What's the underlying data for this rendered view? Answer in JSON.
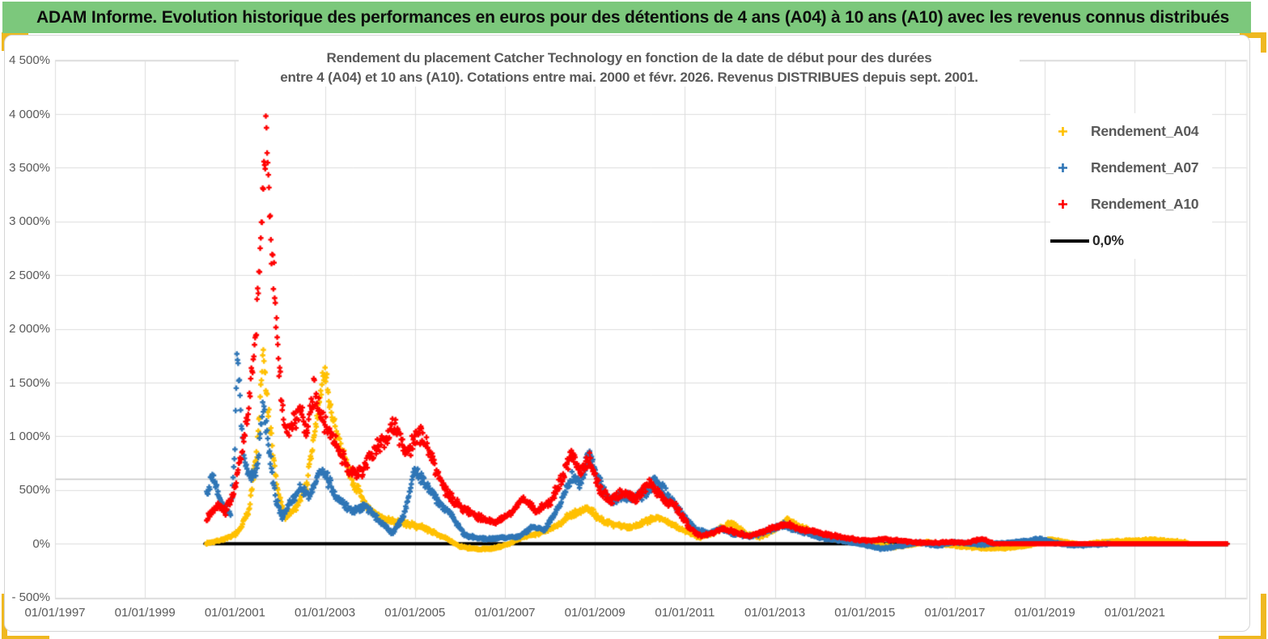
{
  "header": {
    "title": "ADAM Informe. Evolution historique des performances en euros pour des détentions de 4 ans (A04) à 10 ans (A10) avec les revenus connus distribués"
  },
  "colors": {
    "header_green": "#7CC87C",
    "gold_border": "#EFB820",
    "grid": "#DCDCDC",
    "grid_extra": "#C6C6C6",
    "axis_text": "#595959",
    "series_a04": "#FFC000",
    "series_a07": "#2E75B6",
    "series_a10": "#FF0000",
    "zero_line": "#000000"
  },
  "chart_data": {
    "type": "scatter",
    "units": "percent",
    "title_line1": "Rendement du placement Catcher Technology  en fonction de la date de début pour des durées",
    "title_line2": "entre 4 (A04) et 10 ans (A10). Cotations entre mai. 2000 et févr. 2026. Revenus DISTRIBUES depuis sept. 2001.",
    "grid": "on",
    "legend_position": "right",
    "x_axis": {
      "tick_labels": [
        "01/01/1997",
        "01/01/1999",
        "01/01/2001",
        "01/01/2003",
        "01/01/2005",
        "01/01/2007",
        "01/01/2009",
        "01/01/2011",
        "01/01/2013",
        "01/01/2015",
        "01/01/2017",
        "01/01/2019",
        "01/01/2021"
      ],
      "tick_years": [
        1997,
        1999,
        2001,
        2003,
        2005,
        2007,
        2009,
        2011,
        2013,
        2015,
        2017,
        2019,
        2021
      ],
      "gridline_years": [
        1997,
        1999,
        2001,
        2003,
        2005,
        2007,
        2009,
        2011,
        2013,
        2015,
        2017,
        2019,
        2021,
        2023
      ],
      "min_year": 1997,
      "max_year": 2023.45
    },
    "y_axis": {
      "tick_labels": [
        "4 500%",
        "4 000%",
        "3 500%",
        "3 000%",
        "2 500%",
        "2 000%",
        "1 500%",
        "1 000%",
        "500%",
        "0%",
        "- 500%"
      ],
      "tick_values": [
        4500,
        4000,
        3500,
        3000,
        2500,
        2000,
        1500,
        1000,
        500,
        0,
        -500
      ],
      "min": -500,
      "max": 4500,
      "extra_gridline_value": 600
    },
    "zero_line": {
      "label": "0,0%",
      "value": 0,
      "color": "#000000",
      "from_year": 2000.33,
      "to_year": 2023.05
    },
    "legend": [
      {
        "label": "Rendement_A04",
        "color": "#FFC000",
        "marker": "plus"
      },
      {
        "label": "Rendement_A07",
        "color": "#2E75B6",
        "marker": "plus"
      },
      {
        "label": "Rendement_A10",
        "color": "#FF0000",
        "marker": "plus"
      },
      {
        "label": "0,0%",
        "color": "#000000",
        "marker": "line"
      }
    ],
    "series": [
      {
        "name": "Rendement_A04",
        "color": "#FFC000",
        "start_year": 2000.37,
        "zero_from": 2022.2,
        "end_year": 2023.05,
        "anchors": [
          [
            2000.37,
            5
          ],
          [
            2000.6,
            25
          ],
          [
            2000.9,
            60
          ],
          [
            2001.1,
            120
          ],
          [
            2001.3,
            300
          ],
          [
            2001.5,
            900
          ],
          [
            2001.62,
            1750
          ],
          [
            2001.72,
            1300
          ],
          [
            2001.85,
            800
          ],
          [
            2001.95,
            480
          ],
          [
            2002.1,
            250
          ],
          [
            2002.35,
            330
          ],
          [
            2002.6,
            560
          ],
          [
            2002.85,
            1250
          ],
          [
            2003.0,
            1650
          ],
          [
            2003.15,
            1150
          ],
          [
            2003.4,
            850
          ],
          [
            2003.65,
            550
          ],
          [
            2004.0,
            300
          ],
          [
            2004.4,
            220
          ],
          [
            2004.8,
            185
          ],
          [
            2005.2,
            150
          ],
          [
            2005.6,
            70
          ],
          [
            2006.0,
            -25
          ],
          [
            2006.4,
            -55
          ],
          [
            2006.8,
            -40
          ],
          [
            2007.1,
            0
          ],
          [
            2007.4,
            60
          ],
          [
            2007.8,
            105
          ],
          [
            2008.1,
            150
          ],
          [
            2008.45,
            270
          ],
          [
            2008.85,
            330
          ],
          [
            2009.2,
            200
          ],
          [
            2009.5,
            175
          ],
          [
            2009.8,
            150
          ],
          [
            2010.1,
            205
          ],
          [
            2010.4,
            250
          ],
          [
            2010.7,
            180
          ],
          [
            2011.0,
            120
          ],
          [
            2011.3,
            60
          ],
          [
            2011.6,
            95
          ],
          [
            2012.0,
            195
          ],
          [
            2012.4,
            85
          ],
          [
            2012.7,
            65
          ],
          [
            2013.0,
            135
          ],
          [
            2013.3,
            230
          ],
          [
            2013.6,
            150
          ],
          [
            2014.0,
            90
          ],
          [
            2014.4,
            40
          ],
          [
            2014.8,
            10
          ],
          [
            2015.2,
            -15
          ],
          [
            2015.6,
            -30
          ],
          [
            2016.0,
            -10
          ],
          [
            2016.4,
            15
          ],
          [
            2016.8,
            -10
          ],
          [
            2017.3,
            -30
          ],
          [
            2017.8,
            -45
          ],
          [
            2018.3,
            -35
          ],
          [
            2018.7,
            -10
          ],
          [
            2019.1,
            40
          ],
          [
            2019.4,
            20
          ],
          [
            2019.8,
            -10
          ],
          [
            2020.2,
            10
          ],
          [
            2020.6,
            25
          ],
          [
            2021.0,
            30
          ],
          [
            2021.4,
            35
          ],
          [
            2021.8,
            25
          ],
          [
            2022.1,
            15
          ],
          [
            2022.2,
            0
          ]
        ]
      },
      {
        "name": "Rendement_A07",
        "color": "#2E75B6",
        "start_year": 2000.37,
        "zero_from": 2020.45,
        "end_year": 2023.05,
        "anchors": [
          [
            2000.37,
            480
          ],
          [
            2000.5,
            620
          ],
          [
            2000.7,
            380
          ],
          [
            2000.9,
            280
          ],
          [
            2001.0,
            900
          ],
          [
            2001.05,
            1780
          ],
          [
            2001.12,
            1250
          ],
          [
            2001.2,
            800
          ],
          [
            2001.35,
            600
          ],
          [
            2001.5,
            720
          ],
          [
            2001.63,
            1280
          ],
          [
            2001.75,
            900
          ],
          [
            2001.9,
            420
          ],
          [
            2002.05,
            260
          ],
          [
            2002.25,
            400
          ],
          [
            2002.45,
            520
          ],
          [
            2002.65,
            450
          ],
          [
            2002.9,
            700
          ],
          [
            2003.05,
            600
          ],
          [
            2003.3,
            420
          ],
          [
            2003.6,
            300
          ],
          [
            2003.9,
            350
          ],
          [
            2004.2,
            220
          ],
          [
            2004.5,
            95
          ],
          [
            2004.75,
            260
          ],
          [
            2005.0,
            680
          ],
          [
            2005.25,
            540
          ],
          [
            2005.5,
            400
          ],
          [
            2005.8,
            280
          ],
          [
            2006.1,
            80
          ],
          [
            2006.5,
            45
          ],
          [
            2006.9,
            55
          ],
          [
            2007.3,
            65
          ],
          [
            2007.6,
            150
          ],
          [
            2007.9,
            135
          ],
          [
            2008.2,
            360
          ],
          [
            2008.5,
            620
          ],
          [
            2008.7,
            560
          ],
          [
            2008.88,
            870
          ],
          [
            2009.05,
            640
          ],
          [
            2009.35,
            390
          ],
          [
            2009.6,
            450
          ],
          [
            2009.9,
            430
          ],
          [
            2010.15,
            480
          ],
          [
            2010.35,
            600
          ],
          [
            2010.6,
            450
          ],
          [
            2010.9,
            300
          ],
          [
            2011.2,
            150
          ],
          [
            2011.5,
            90
          ],
          [
            2011.8,
            140
          ],
          [
            2012.1,
            90
          ],
          [
            2012.5,
            70
          ],
          [
            2012.9,
            130
          ],
          [
            2013.2,
            175
          ],
          [
            2013.5,
            120
          ],
          [
            2014.0,
            60
          ],
          [
            2014.5,
            25
          ],
          [
            2015.0,
            -10
          ],
          [
            2015.35,
            -45
          ],
          [
            2015.8,
            -20
          ],
          [
            2016.2,
            10
          ],
          [
            2016.6,
            -20
          ],
          [
            2017.0,
            15
          ],
          [
            2017.5,
            -10
          ],
          [
            2018.0,
            5
          ],
          [
            2018.5,
            20
          ],
          [
            2018.9,
            45
          ],
          [
            2019.2,
            10
          ],
          [
            2019.6,
            -15
          ],
          [
            2020.0,
            -12
          ],
          [
            2020.45,
            0
          ]
        ]
      },
      {
        "name": "Rendement_A10",
        "color": "#FF0000",
        "start_year": 2000.37,
        "zero_from": 2017.85,
        "end_year": 2023.05,
        "anchors": [
          [
            2000.37,
            230
          ],
          [
            2000.6,
            350
          ],
          [
            2000.8,
            300
          ],
          [
            2001.0,
            520
          ],
          [
            2001.15,
            850
          ],
          [
            2001.3,
            1250
          ],
          [
            2001.45,
            1950
          ],
          [
            2001.55,
            2650
          ],
          [
            2001.63,
            3350
          ],
          [
            2001.7,
            3800
          ],
          [
            2001.78,
            3050
          ],
          [
            2001.86,
            2450
          ],
          [
            2001.95,
            1850
          ],
          [
            2002.05,
            1300
          ],
          [
            2002.15,
            1000
          ],
          [
            2002.3,
            1150
          ],
          [
            2002.45,
            1250
          ],
          [
            2002.6,
            1000
          ],
          [
            2002.75,
            1420
          ],
          [
            2002.9,
            1180
          ],
          [
            2003.05,
            1080
          ],
          [
            2003.2,
            950
          ],
          [
            2003.4,
            800
          ],
          [
            2003.6,
            650
          ],
          [
            2003.85,
            700
          ],
          [
            2004.1,
            850
          ],
          [
            2004.3,
            950
          ],
          [
            2004.55,
            1090
          ],
          [
            2004.8,
            840
          ],
          [
            2005.1,
            1040
          ],
          [
            2005.35,
            820
          ],
          [
            2005.6,
            550
          ],
          [
            2005.9,
            380
          ],
          [
            2006.2,
            300
          ],
          [
            2006.5,
            230
          ],
          [
            2006.8,
            200
          ],
          [
            2007.1,
            260
          ],
          [
            2007.4,
            420
          ],
          [
            2007.7,
            300
          ],
          [
            2008.0,
            380
          ],
          [
            2008.2,
            560
          ],
          [
            2008.48,
            820
          ],
          [
            2008.65,
            680
          ],
          [
            2008.88,
            790
          ],
          [
            2009.1,
            520
          ],
          [
            2009.35,
            400
          ],
          [
            2009.6,
            480
          ],
          [
            2009.9,
            420
          ],
          [
            2010.2,
            570
          ],
          [
            2010.5,
            420
          ],
          [
            2010.8,
            350
          ],
          [
            2011.1,
            150
          ],
          [
            2011.35,
            70
          ],
          [
            2011.6,
            95
          ],
          [
            2011.85,
            140
          ],
          [
            2012.1,
            110
          ],
          [
            2012.4,
            70
          ],
          [
            2012.7,
            100
          ],
          [
            2013.0,
            160
          ],
          [
            2013.3,
            180
          ],
          [
            2013.6,
            130
          ],
          [
            2013.9,
            110
          ],
          [
            2014.2,
            80
          ],
          [
            2014.5,
            60
          ],
          [
            2014.8,
            40
          ],
          [
            2015.1,
            28
          ],
          [
            2015.45,
            42
          ],
          [
            2015.8,
            28
          ],
          [
            2016.1,
            12
          ],
          [
            2016.5,
            8
          ],
          [
            2016.9,
            14
          ],
          [
            2017.3,
            8
          ],
          [
            2017.6,
            45
          ],
          [
            2017.8,
            12
          ]
        ]
      }
    ]
  }
}
